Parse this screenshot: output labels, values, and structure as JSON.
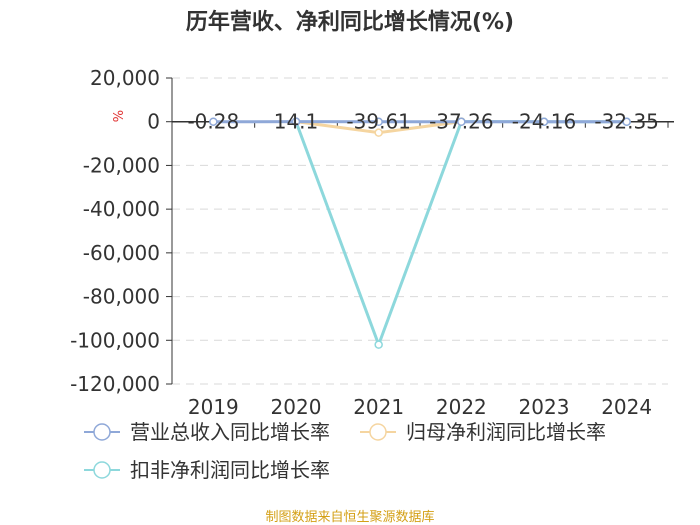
{
  "chart_data": {
    "type": "line",
    "title": "历年营收、净利同比增长情况(%)",
    "ylabel": "%",
    "categories": [
      "2019",
      "2020",
      "2021",
      "2022",
      "2023",
      "2024"
    ],
    "ylim": [
      -120000,
      20000
    ],
    "yticks": [
      20000,
      0,
      -20000,
      -40000,
      -60000,
      -80000,
      -100000,
      -120000
    ],
    "ytick_labels": [
      "20,000",
      "0",
      "-20,000",
      "-40,000",
      "-60,000",
      "-80,000",
      "-100,000",
      "-120,000"
    ],
    "grid": true,
    "legend_position": "bottom",
    "series": [
      {
        "name": "营业总收入同比增长率",
        "color": "#8fa8d8",
        "values": [
          -0.28,
          14.1,
          -39.61,
          -37.26,
          -24.16,
          -32.35
        ],
        "labels": [
          "-0.28",
          "14.1",
          "-39.61",
          "-37.26",
          "-24.16",
          "-32.35"
        ]
      },
      {
        "name": "归母净利润同比增长率",
        "color": "#f5d5a0",
        "values": [
          null,
          50,
          -5000,
          20,
          null,
          null
        ]
      },
      {
        "name": "扣非净利润同比增长率",
        "color": "#8dd8dc",
        "values": [
          null,
          10,
          -102000,
          30,
          0,
          0
        ]
      }
    ]
  },
  "source": "制图数据来自恒生聚源数据库"
}
